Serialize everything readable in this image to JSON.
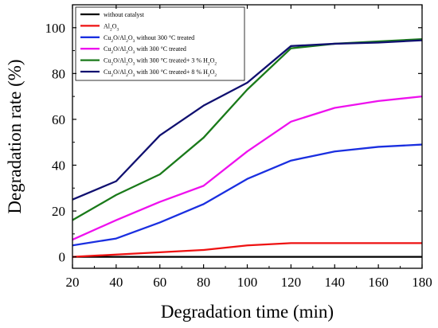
{
  "chart_data": {
    "type": "line",
    "xlabel": "Degradation time (min)",
    "ylabel": "Degradation rate (%)",
    "xlim": [
      20,
      180
    ],
    "ylim": [
      -5,
      110
    ],
    "xticks": [
      20,
      40,
      60,
      80,
      100,
      120,
      140,
      160,
      180
    ],
    "yticks": [
      0,
      20,
      40,
      60,
      80,
      100
    ],
    "grid": false,
    "legend_position": "top-left",
    "x": [
      20,
      40,
      60,
      80,
      100,
      120,
      140,
      160,
      180
    ],
    "series": [
      {
        "name": "without catalyst",
        "color": "#000000",
        "values": [
          0,
          0,
          0,
          0,
          0,
          0,
          0,
          0,
          0
        ]
      },
      {
        "name": "Al2O3",
        "color": "#ee1111",
        "values": [
          0,
          1,
          2,
          3,
          5,
          6,
          6,
          6,
          6
        ]
      },
      {
        "name": "Cu2O/Al2O3 without 300 °C treated",
        "color": "#1a2fe0",
        "values": [
          5,
          8,
          15,
          23,
          34,
          42,
          46,
          48,
          49
        ]
      },
      {
        "name": "Cu2O/Al2O3 with 300 °C treated",
        "color": "#ee11ee",
        "values": [
          7.5,
          16,
          24,
          31,
          46,
          59,
          65,
          68,
          70
        ]
      },
      {
        "name": "Cu2O/Al2O3 with 300 °C treated+ 3 % H2O2",
        "color": "#1a7a1a",
        "values": [
          16,
          27,
          36,
          52,
          73,
          91,
          93,
          94,
          95
        ]
      },
      {
        "name": "Cu2O/Al2O3 with 300 °C treated+ 8 % H2O2",
        "color": "#101070",
        "values": [
          25,
          33,
          53,
          66,
          76,
          92,
          93,
          93.5,
          94.5
        ]
      }
    ]
  }
}
